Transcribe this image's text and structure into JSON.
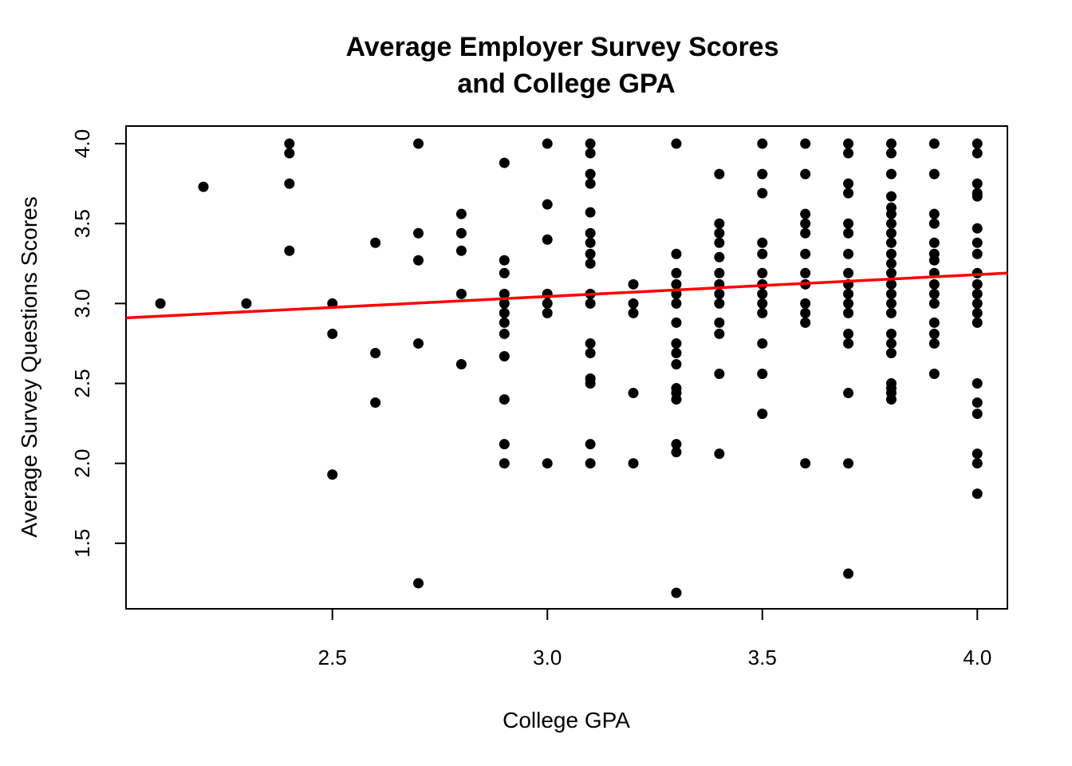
{
  "chart_data": {
    "type": "scatter",
    "title": [
      "Average Employer Survey Scores",
      "and College GPA"
    ],
    "xlabel": "College GPA",
    "ylabel": "Average Survey Questions Scores",
    "xlim": [
      2.02,
      4.07
    ],
    "ylim": [
      1.09,
      4.11
    ],
    "x_ticks": [
      "2.5",
      "3.0",
      "3.5",
      "4.0"
    ],
    "y_ticks": [
      "1.5",
      "2.0",
      "2.5",
      "3.0",
      "3.5",
      "4.0"
    ],
    "grid": false,
    "point_color": "#000000",
    "fit_line": {
      "color": "#ff0000",
      "x": [
        2.02,
        4.07
      ],
      "y": [
        2.91,
        3.19
      ]
    },
    "points": [
      [
        2.1,
        3.0
      ],
      [
        2.2,
        3.73
      ],
      [
        2.3,
        3.0
      ],
      [
        2.4,
        4.0
      ],
      [
        2.4,
        3.94
      ],
      [
        2.4,
        3.75
      ],
      [
        2.4,
        3.33
      ],
      [
        2.5,
        3.0
      ],
      [
        2.5,
        2.81
      ],
      [
        2.5,
        1.93
      ],
      [
        2.6,
        3.38
      ],
      [
        2.6,
        2.69
      ],
      [
        2.6,
        2.38
      ],
      [
        2.7,
        4.0
      ],
      [
        2.7,
        3.44
      ],
      [
        2.7,
        3.27
      ],
      [
        2.7,
        2.75
      ],
      [
        2.7,
        1.25
      ],
      [
        2.8,
        3.56
      ],
      [
        2.8,
        3.44
      ],
      [
        2.8,
        3.33
      ],
      [
        2.8,
        3.06
      ],
      [
        2.8,
        2.62
      ],
      [
        2.9,
        3.88
      ],
      [
        2.9,
        3.27
      ],
      [
        2.9,
        3.19
      ],
      [
        2.9,
        3.06
      ],
      [
        2.9,
        3.0
      ],
      [
        2.9,
        2.94
      ],
      [
        2.9,
        2.88
      ],
      [
        2.9,
        2.81
      ],
      [
        2.9,
        2.67
      ],
      [
        2.9,
        2.4
      ],
      [
        2.9,
        2.12
      ],
      [
        2.9,
        2.0
      ],
      [
        3.0,
        4.0
      ],
      [
        3.0,
        3.62
      ],
      [
        3.0,
        3.4
      ],
      [
        3.0,
        3.06
      ],
      [
        3.0,
        3.0
      ],
      [
        3.0,
        2.94
      ],
      [
        3.0,
        2.0
      ],
      [
        3.1,
        4.0
      ],
      [
        3.1,
        3.94
      ],
      [
        3.1,
        3.81
      ],
      [
        3.1,
        3.75
      ],
      [
        3.1,
        3.57
      ],
      [
        3.1,
        3.44
      ],
      [
        3.1,
        3.38
      ],
      [
        3.1,
        3.31
      ],
      [
        3.1,
        3.25
      ],
      [
        3.1,
        3.06
      ],
      [
        3.1,
        3.0
      ],
      [
        3.1,
        2.75
      ],
      [
        3.1,
        2.69
      ],
      [
        3.1,
        2.53
      ],
      [
        3.1,
        2.5
      ],
      [
        3.1,
        2.12
      ],
      [
        3.1,
        2.0
      ],
      [
        3.2,
        3.12
      ],
      [
        3.2,
        3.0
      ],
      [
        3.2,
        2.94
      ],
      [
        3.2,
        2.44
      ],
      [
        3.2,
        2.0
      ],
      [
        3.3,
        4.0
      ],
      [
        3.3,
        3.31
      ],
      [
        3.3,
        3.19
      ],
      [
        3.3,
        3.12
      ],
      [
        3.3,
        3.06
      ],
      [
        3.3,
        3.0
      ],
      [
        3.3,
        2.88
      ],
      [
        3.3,
        2.75
      ],
      [
        3.3,
        2.69
      ],
      [
        3.3,
        2.62
      ],
      [
        3.3,
        2.47
      ],
      [
        3.3,
        2.44
      ],
      [
        3.3,
        2.4
      ],
      [
        3.3,
        2.12
      ],
      [
        3.3,
        2.07
      ],
      [
        3.3,
        1.19
      ],
      [
        3.4,
        3.81
      ],
      [
        3.4,
        3.5
      ],
      [
        3.4,
        3.44
      ],
      [
        3.4,
        3.38
      ],
      [
        3.4,
        3.29
      ],
      [
        3.4,
        3.19
      ],
      [
        3.4,
        3.12
      ],
      [
        3.4,
        3.06
      ],
      [
        3.4,
        3.0
      ],
      [
        3.4,
        2.88
      ],
      [
        3.4,
        2.81
      ],
      [
        3.4,
        2.56
      ],
      [
        3.4,
        2.06
      ],
      [
        3.5,
        4.0
      ],
      [
        3.5,
        3.81
      ],
      [
        3.5,
        3.69
      ],
      [
        3.5,
        3.38
      ],
      [
        3.5,
        3.31
      ],
      [
        3.5,
        3.19
      ],
      [
        3.5,
        3.12
      ],
      [
        3.5,
        3.06
      ],
      [
        3.5,
        3.0
      ],
      [
        3.5,
        2.94
      ],
      [
        3.5,
        2.75
      ],
      [
        3.5,
        2.56
      ],
      [
        3.5,
        2.31
      ],
      [
        3.6,
        4.0
      ],
      [
        3.6,
        3.81
      ],
      [
        3.6,
        3.56
      ],
      [
        3.6,
        3.5
      ],
      [
        3.6,
        3.44
      ],
      [
        3.6,
        3.31
      ],
      [
        3.6,
        3.19
      ],
      [
        3.6,
        3.12
      ],
      [
        3.6,
        3.0
      ],
      [
        3.6,
        2.94
      ],
      [
        3.6,
        2.88
      ],
      [
        3.6,
        2.0
      ],
      [
        3.7,
        4.0
      ],
      [
        3.7,
        3.94
      ],
      [
        3.7,
        3.75
      ],
      [
        3.7,
        3.69
      ],
      [
        3.7,
        3.5
      ],
      [
        3.7,
        3.44
      ],
      [
        3.7,
        3.31
      ],
      [
        3.7,
        3.19
      ],
      [
        3.7,
        3.12
      ],
      [
        3.7,
        3.06
      ],
      [
        3.7,
        3.0
      ],
      [
        3.7,
        2.94
      ],
      [
        3.7,
        2.81
      ],
      [
        3.7,
        2.75
      ],
      [
        3.7,
        2.44
      ],
      [
        3.7,
        2.0
      ],
      [
        3.7,
        1.31
      ],
      [
        3.8,
        4.0
      ],
      [
        3.8,
        3.94
      ],
      [
        3.8,
        3.81
      ],
      [
        3.8,
        3.67
      ],
      [
        3.8,
        3.6
      ],
      [
        3.8,
        3.56
      ],
      [
        3.8,
        3.5
      ],
      [
        3.8,
        3.44
      ],
      [
        3.8,
        3.38
      ],
      [
        3.8,
        3.31
      ],
      [
        3.8,
        3.25
      ],
      [
        3.8,
        3.19
      ],
      [
        3.8,
        3.12
      ],
      [
        3.8,
        3.06
      ],
      [
        3.8,
        3.0
      ],
      [
        3.8,
        2.94
      ],
      [
        3.8,
        2.81
      ],
      [
        3.8,
        2.75
      ],
      [
        3.8,
        2.69
      ],
      [
        3.8,
        2.5
      ],
      [
        3.8,
        2.47
      ],
      [
        3.8,
        2.44
      ],
      [
        3.8,
        2.4
      ],
      [
        3.9,
        4.0
      ],
      [
        3.9,
        3.81
      ],
      [
        3.9,
        3.56
      ],
      [
        3.9,
        3.5
      ],
      [
        3.9,
        3.38
      ],
      [
        3.9,
        3.31
      ],
      [
        3.9,
        3.27
      ],
      [
        3.9,
        3.19
      ],
      [
        3.9,
        3.12
      ],
      [
        3.9,
        3.06
      ],
      [
        3.9,
        3.0
      ],
      [
        3.9,
        2.88
      ],
      [
        3.9,
        2.81
      ],
      [
        3.9,
        2.75
      ],
      [
        3.9,
        2.56
      ],
      [
        4.0,
        4.0
      ],
      [
        4.0,
        3.94
      ],
      [
        4.0,
        3.75
      ],
      [
        4.0,
        3.69
      ],
      [
        4.0,
        3.67
      ],
      [
        4.0,
        3.47
      ],
      [
        4.0,
        3.38
      ],
      [
        4.0,
        3.31
      ],
      [
        4.0,
        3.19
      ],
      [
        4.0,
        3.12
      ],
      [
        4.0,
        3.06
      ],
      [
        4.0,
        3.0
      ],
      [
        4.0,
        2.94
      ],
      [
        4.0,
        2.88
      ],
      [
        4.0,
        2.5
      ],
      [
        4.0,
        2.38
      ],
      [
        4.0,
        2.31
      ],
      [
        4.0,
        2.06
      ],
      [
        4.0,
        2.0
      ],
      [
        4.0,
        1.81
      ]
    ]
  }
}
